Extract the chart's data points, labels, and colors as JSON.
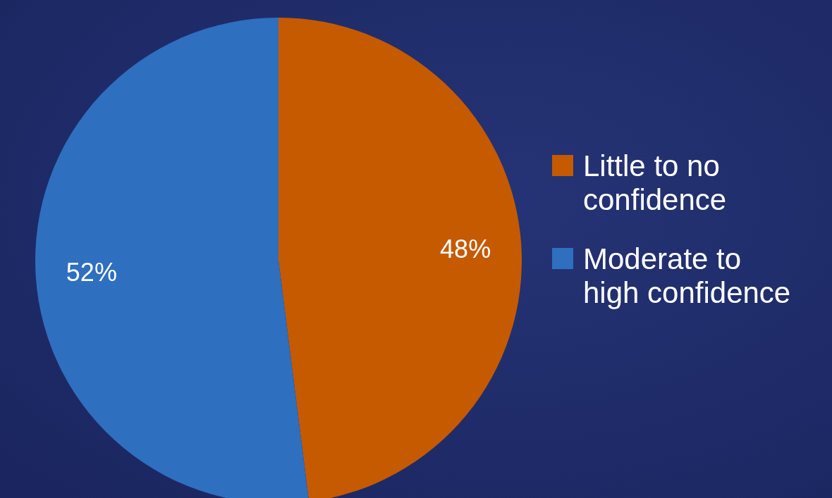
{
  "chart_data": {
    "type": "pie",
    "categories": [
      "Little to no confidence",
      "Moderate to high confidence"
    ],
    "values": [
      48,
      52
    ],
    "colors": [
      "#c55a00",
      "#2e6fc0"
    ],
    "value_labels": [
      "48%",
      "52%"
    ],
    "legend": "right"
  }
}
